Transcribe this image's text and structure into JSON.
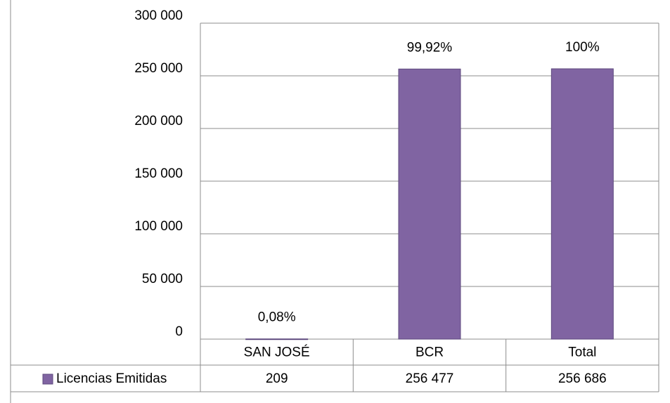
{
  "chart_data": {
    "type": "bar",
    "categories": [
      "SAN JOSÉ",
      "BCR",
      "Total"
    ],
    "series": [
      {
        "name": "Licencias Emitidas",
        "color": "#8064a2",
        "values": [
          209,
          256477,
          256686
        ],
        "value_labels": [
          "209",
          "256 477",
          "256 686"
        ],
        "data_labels": [
          "0,08%",
          "99,92%",
          "100%"
        ]
      }
    ],
    "ylim": [
      0,
      300000
    ],
    "yticks": [
      0,
      {
        "value": 50000,
        "label": "50 000"
      },
      {
        "value": 100000,
        "label": "100 000"
      },
      {
        "value": 150000,
        "label": "150 000"
      },
      {
        "value": 200000,
        "label": "200 000"
      },
      {
        "value": 250000,
        "label": "250 000"
      },
      {
        "value": 300000,
        "label": "300 000"
      }
    ],
    "grid": true,
    "data_table": true
  }
}
